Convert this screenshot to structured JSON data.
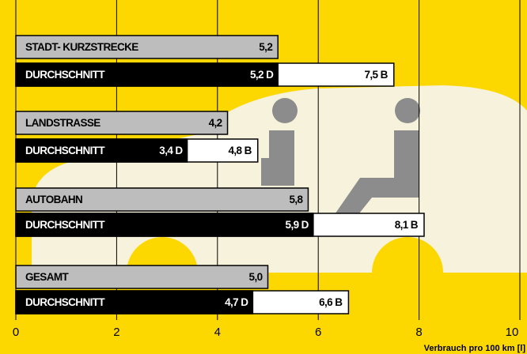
{
  "chart_data": {
    "type": "bar",
    "orientation": "horizontal",
    "categories": [
      "STADT- KURZSTRECKE",
      "LANDSTRASSE",
      "AUTOBAHN",
      "GESAMT"
    ],
    "subcategory": "DURCHSCHNITT",
    "series": [
      {
        "color": "#bdbdbd",
        "values": [
          5.2,
          4.2,
          5.8,
          5.0
        ],
        "value_labels": [
          "5,2",
          "4,2",
          "5,8",
          "5,0"
        ]
      },
      {
        "color": "#000000",
        "values": [
          5.2,
          3.4,
          5.9,
          4.7
        ],
        "value_labels": [
          "5,2 D",
          "3,4 D",
          "5,9 D",
          "4,7 D"
        ]
      },
      {
        "color": "#ffffff",
        "values": [
          7.5,
          4.8,
          8.1,
          6.6
        ],
        "value_labels": [
          "7,5 B",
          "4,8 B",
          "8,1 B",
          "6,6 B"
        ]
      }
    ],
    "xlim": [
      0,
      10
    ],
    "xticks": [
      0,
      2,
      4,
      6,
      8,
      10
    ],
    "grid": true,
    "x_label": "Verbrauch pro 100 km [l]"
  }
}
